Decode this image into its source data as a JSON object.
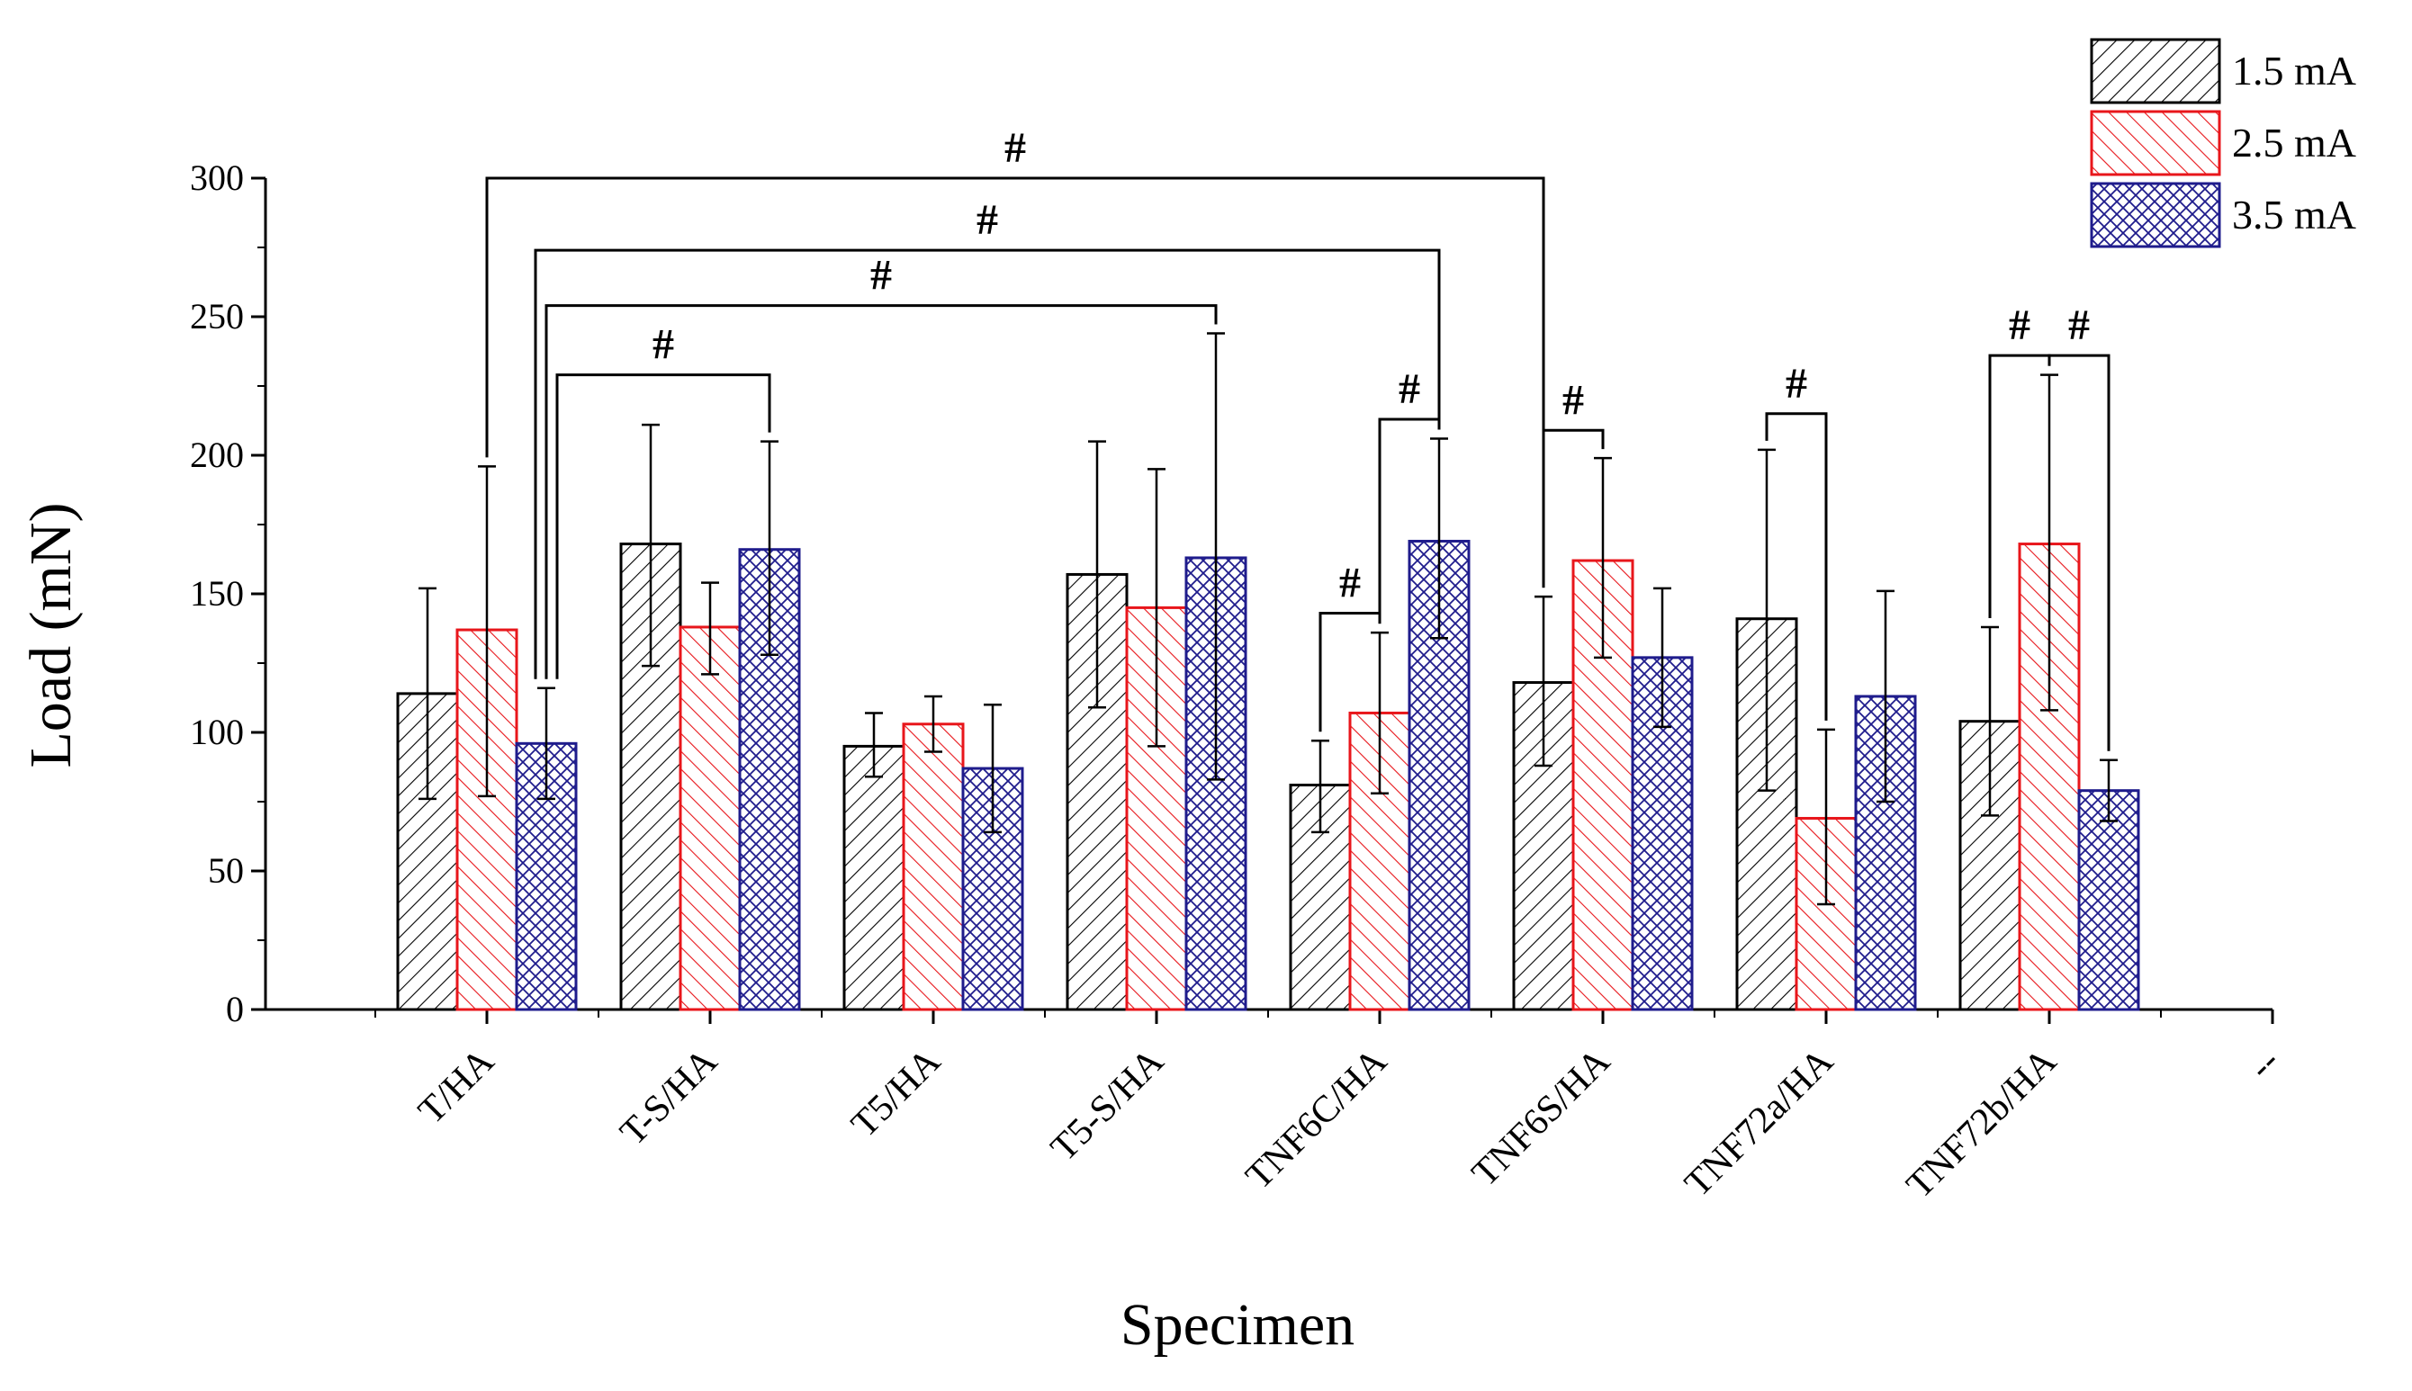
{
  "chart_data": {
    "type": "bar",
    "title": "",
    "xlabel": "Specimen",
    "ylabel": "Load (mN)",
    "ylim": [
      0,
      300
    ],
    "yticks": [
      0,
      50,
      100,
      150,
      200,
      250,
      300
    ],
    "categories": [
      "T/HA",
      "T-S/HA",
      "T5/HA",
      "T5-S/HA",
      "TNF6C/HA",
      "TNF6S/HA",
      "TNF72a/HA",
      "TNF72b/HA",
      "--"
    ],
    "series": [
      {
        "name": "1.5 mA",
        "color": "#000000",
        "pattern": "diag-fwd",
        "values": [
          114,
          168,
          95,
          157,
          81,
          118,
          141,
          104,
          null
        ],
        "err_low": [
          76,
          124,
          84,
          109,
          64,
          88,
          79,
          70,
          null
        ],
        "err_high": [
          152,
          211,
          107,
          205,
          97,
          149,
          202,
          138,
          null
        ]
      },
      {
        "name": "2.5 mA",
        "color": "#e8161b",
        "pattern": "diag-back",
        "values": [
          137,
          138,
          103,
          145,
          107,
          162,
          69,
          168,
          null
        ],
        "err_low": [
          77,
          121,
          93,
          95,
          78,
          127,
          38,
          108,
          null
        ],
        "err_high": [
          196,
          154,
          113,
          195,
          136,
          199,
          101,
          229,
          null
        ]
      },
      {
        "name": "3.5 mA",
        "color": "#1f1c8c",
        "pattern": "crosshatch",
        "values": [
          96,
          166,
          87,
          163,
          169,
          127,
          113,
          79,
          null
        ],
        "err_low": [
          76,
          128,
          64,
          83,
          134,
          102,
          75,
          68,
          null
        ],
        "err_high": [
          116,
          205,
          110,
          244,
          206,
          152,
          151,
          90,
          null
        ]
      }
    ],
    "significance": [
      {
        "label": "#",
        "from_cat": 0,
        "from_series": 1,
        "to_cat": 5,
        "to_series": 0,
        "level": 300
      },
      {
        "label": "#",
        "from_cat": 0,
        "from_series": 2,
        "to_cat": 4,
        "to_series": 2,
        "level": 274
      },
      {
        "label": "#",
        "from_cat": 0,
        "from_series": 2,
        "to_cat": 3,
        "to_series": 2,
        "level": 254
      },
      {
        "label": "#",
        "from_cat": 0,
        "from_series": 2,
        "to_cat": 1,
        "to_series": 2,
        "level": 229
      },
      {
        "label": "#",
        "from_cat": 4,
        "from_series": 0,
        "to_cat": 4,
        "to_series": 1,
        "level": 143
      },
      {
        "label": "#",
        "from_cat": 4,
        "from_series": 1,
        "to_cat": 4,
        "to_series": 2,
        "level": 213
      },
      {
        "label": "#",
        "from_cat": 5,
        "from_series": 0,
        "to_cat": 5,
        "to_series": 1,
        "level": 209
      },
      {
        "label": "#",
        "from_cat": 6,
        "from_series": 0,
        "to_cat": 6,
        "to_series": 1,
        "level": 215
      },
      {
        "label": "#",
        "from_cat": 7,
        "from_series": 0,
        "to_cat": 7,
        "to_series": 1,
        "level": 236
      },
      {
        "label": "#",
        "from_cat": 7,
        "from_series": 1,
        "to_cat": 7,
        "to_series": 2,
        "level": 236
      }
    ],
    "legend": {
      "position": "top-right",
      "entries": [
        "1.5 mA",
        "2.5 mA",
        "3.5 mA"
      ]
    },
    "grid": false
  }
}
